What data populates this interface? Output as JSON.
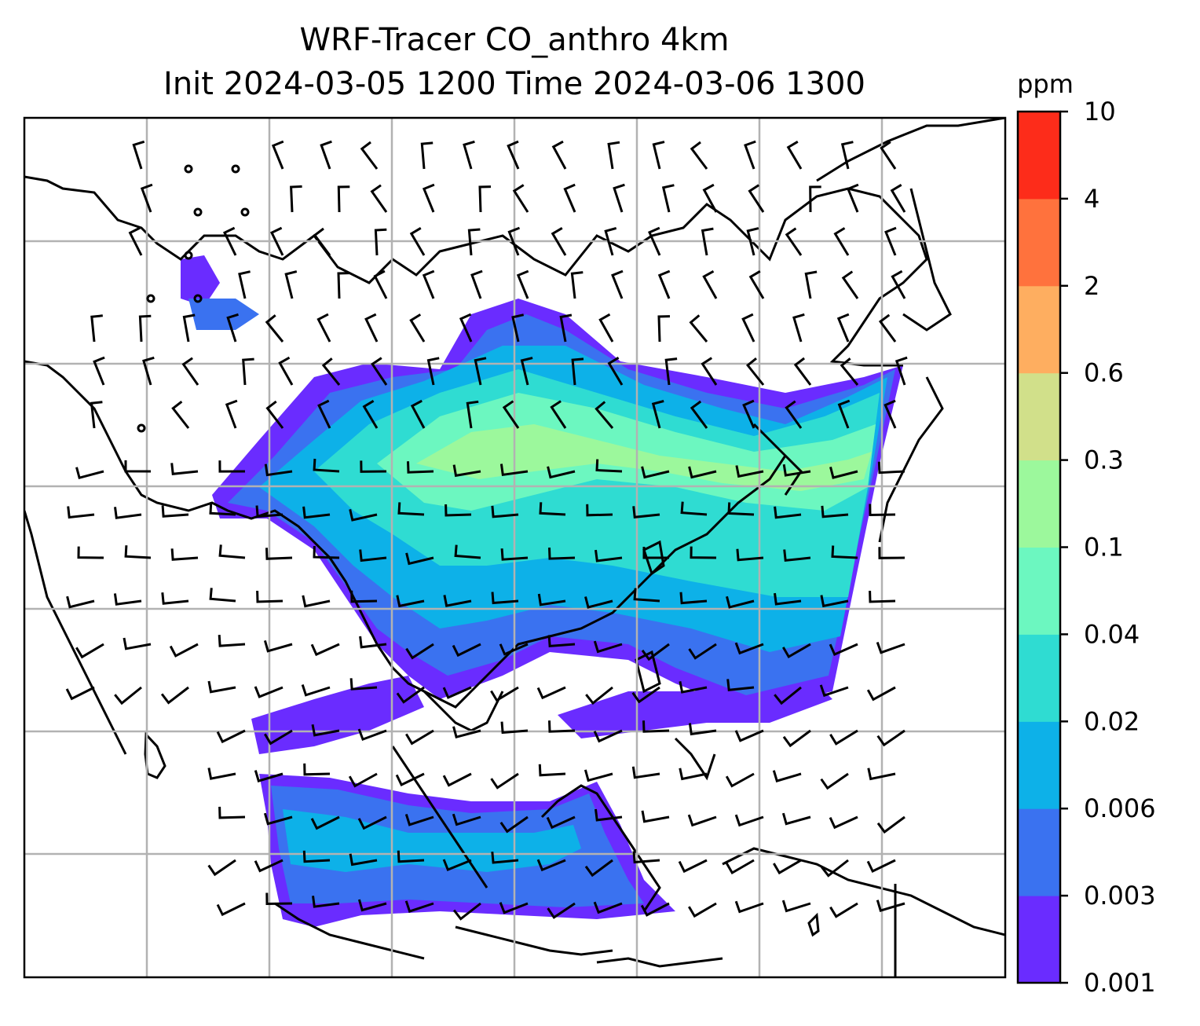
{
  "title_line1": "WRF-Tracer CO_anthro 4km",
  "title_line2": "Init 2024-03-05 1200 Time 2024-03-06 1300",
  "colorbar": {
    "unit": "ppm",
    "levels": [
      "0.001",
      "0.003",
      "0.006",
      "0.02",
      "0.04",
      "0.1",
      "0.3",
      "0.6",
      "2",
      "4",
      "10"
    ],
    "colors": [
      "#6a2cff",
      "#3a72f0",
      "#0db1e8",
      "#2fdcd2",
      "#6cf7c0",
      "#9cf89c",
      "#d1e08a",
      "#feae60",
      "#ff723d",
      "#fd2c1a"
    ]
  },
  "map": {
    "gridlines": true,
    "features": [
      "coastlines",
      "country borders",
      "wind barbs",
      "tracer concentration field"
    ]
  }
}
